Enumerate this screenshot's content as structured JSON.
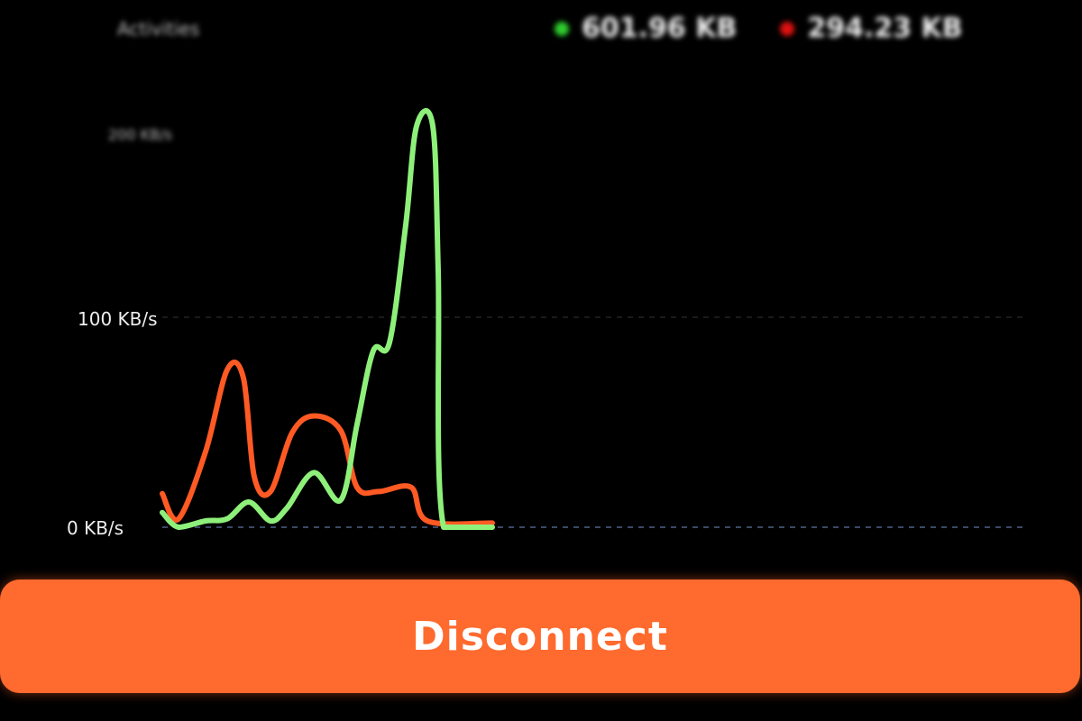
{
  "header": {
    "title": "Activities",
    "legend": [
      {
        "label": "601.96 KB",
        "color": "#2ecc2e"
      },
      {
        "label": "294.23 KB",
        "color": "#e01010"
      }
    ]
  },
  "chart_data": {
    "type": "line",
    "ylabel_ticks": [
      "0 KB/s",
      "100 KB/s",
      "200 KB/s"
    ],
    "ylim": [
      0,
      200
    ],
    "xlim": [
      0,
      160
    ],
    "grid": "dashed horizontal",
    "series": [
      {
        "color": "#8ef07a",
        "x": [
          0,
          3,
          8,
          12,
          16,
          20,
          23,
          28,
          33,
          36,
          39,
          42,
          45,
          47,
          50,
          51,
          52,
          61
        ],
        "y": [
          7,
          0,
          3,
          4,
          12,
          3,
          9,
          26,
          13,
          49,
          84,
          88,
          144,
          191,
          191,
          122,
          0,
          0
        ]
      },
      {
        "color": "#ff5a24",
        "x": [
          0,
          3,
          8,
          12,
          15,
          17,
          20,
          24,
          28,
          33,
          36,
          40,
          46,
          49,
          61
        ],
        "y": [
          16,
          4,
          36,
          75,
          71,
          24,
          17,
          45,
          53,
          46,
          19,
          17,
          19,
          3,
          2
        ]
      }
    ]
  },
  "button": {
    "label": "Disconnect",
    "color": "#ff6a2e"
  }
}
